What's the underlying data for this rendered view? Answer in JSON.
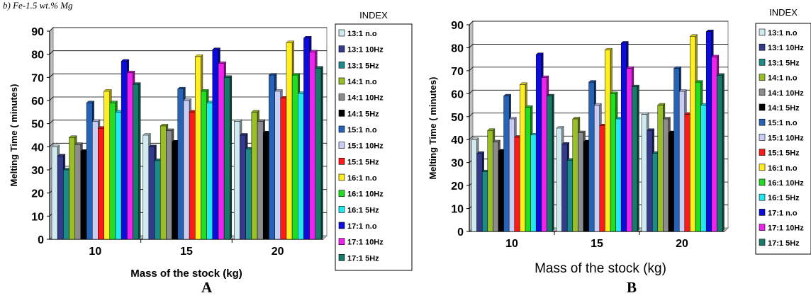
{
  "caption": "b) Fe-1.5 wt.% Mg",
  "colors": [
    "#cfeaf0",
    "#343a8c",
    "#1e8b8b",
    "#99bf26",
    "#8c8c8c",
    "#000000",
    "#2563b8",
    "#c8cdf5",
    "#ff1a1a",
    "#ffee22",
    "#22dd22",
    "#22e8f0",
    "#0c0cde",
    "#ee22ee",
    "#1a7a6a"
  ],
  "chart_data": [
    {
      "panel_label": "A",
      "type": "bar",
      "ylabel": "Melting Time ( minutes)",
      "xlabel": "Mass of the stock (kg)",
      "legend_title": "INDEX",
      "legend_position": "right",
      "ylim": [
        0,
        90
      ],
      "yticks": [
        0,
        10,
        20,
        30,
        40,
        50,
        60,
        70,
        80,
        90
      ],
      "grid": true,
      "categories": [
        "10",
        "15",
        "20"
      ],
      "series": [
        {
          "name": "13:1 n.o",
          "values": [
            40,
            45,
            51
          ]
        },
        {
          "name": "13:1 10Hz",
          "values": [
            36,
            40,
            45
          ]
        },
        {
          "name": "13:1 5Hz",
          "values": [
            30,
            34,
            39
          ]
        },
        {
          "name": "14:1 n.o",
          "values": [
            44,
            49,
            55
          ]
        },
        {
          "name": "14:1 10Hz",
          "values": [
            41,
            47,
            51
          ]
        },
        {
          "name": "14:1 5Hz",
          "values": [
            38,
            42,
            46
          ]
        },
        {
          "name": "15:1 n.o",
          "values": [
            59,
            65,
            71
          ]
        },
        {
          "name": "15:1 10Hz",
          "values": [
            51,
            60,
            64
          ]
        },
        {
          "name": "15:1 5Hz",
          "values": [
            48,
            55,
            61
          ]
        },
        {
          "name": "16:1 n.o",
          "values": [
            64,
            79,
            85
          ]
        },
        {
          "name": "16:1 10Hz",
          "values": [
            59,
            64,
            71
          ]
        },
        {
          "name": "16:1 5Hz",
          "values": [
            55,
            59,
            63
          ]
        },
        {
          "name": "17:1 n.o",
          "values": [
            77,
            82,
            87
          ]
        },
        {
          "name": "17:1 10Hz",
          "values": [
            72,
            76,
            81
          ]
        },
        {
          "name": "17:1 5Hz",
          "values": [
            67,
            70,
            74
          ]
        }
      ]
    },
    {
      "panel_label": "B",
      "type": "bar",
      "ylabel": "Melting Time ( minutes)",
      "xlabel": "Mass of the stock (kg)",
      "legend_title": "INDEX",
      "legend_position": "right",
      "ylim": [
        0,
        90
      ],
      "yticks": [
        0,
        10,
        20,
        30,
        40,
        50,
        60,
        70,
        80,
        90
      ],
      "grid": true,
      "categories": [
        "10",
        "15",
        "20"
      ],
      "series": [
        {
          "name": "13:1 n.o",
          "values": [
            40,
            45,
            51
          ]
        },
        {
          "name": "13:1 10Hz",
          "values": [
            34,
            38,
            44
          ]
        },
        {
          "name": "13:1 5Hz",
          "values": [
            26,
            31,
            34
          ]
        },
        {
          "name": "14:1 n.o",
          "values": [
            44,
            49,
            55
          ]
        },
        {
          "name": "14:1 10Hz",
          "values": [
            39,
            43,
            49
          ]
        },
        {
          "name": "14:1  5Hz",
          "values": [
            35,
            39,
            43
          ]
        },
        {
          "name": "15:1 n.o",
          "values": [
            59,
            65,
            71
          ]
        },
        {
          "name": "15:1 10Hz",
          "values": [
            49,
            55,
            61
          ]
        },
        {
          "name": "15:1  5Hz",
          "values": [
            41,
            46,
            51
          ]
        },
        {
          "name": "16:1 n.o",
          "values": [
            64,
            79,
            85
          ]
        },
        {
          "name": "16:1 10Hz",
          "values": [
            54,
            60,
            65
          ]
        },
        {
          "name": "16:1  5Hz",
          "values": [
            42,
            49,
            55
          ]
        },
        {
          "name": "17:1 n.o",
          "values": [
            77,
            82,
            87
          ]
        },
        {
          "name": "17:1 10Hz",
          "values": [
            67,
            71,
            76
          ]
        },
        {
          "name": "17:1  5Hz",
          "values": [
            59,
            63,
            68
          ]
        }
      ]
    }
  ]
}
